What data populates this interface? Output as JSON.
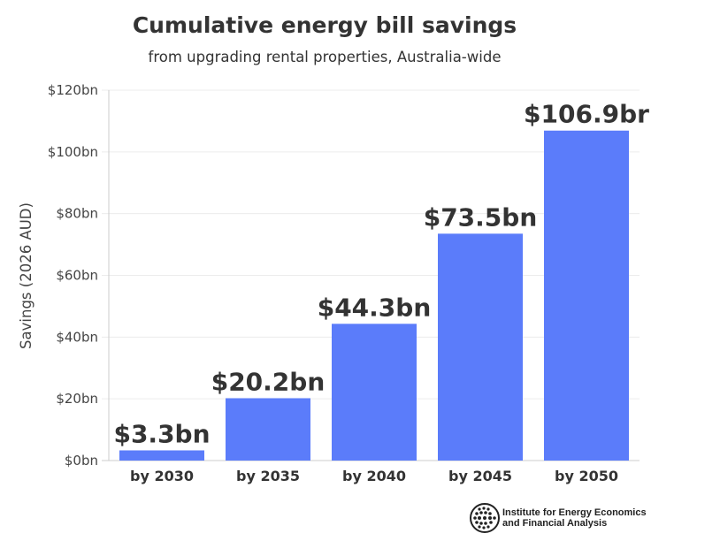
{
  "chart_data": {
    "type": "bar",
    "title": "Cumulative energy bill savings",
    "subtitle": "from upgrading rental properties, Australia-wide",
    "ylabel": "Savings (2026 AUD)",
    "xlabel": "",
    "categories": [
      "by 2030",
      "by 2035",
      "by 2040",
      "by 2045",
      "by 2050"
    ],
    "values": [
      3.3,
      20.2,
      44.3,
      73.5,
      106.9
    ],
    "data_labels": [
      "$3.3bn",
      "$20.2bn",
      "$44.3bn",
      "$73.5bn",
      "$106.9br"
    ],
    "ylim": [
      0,
      120
    ],
    "yticks": [
      0,
      20,
      40,
      60,
      80,
      100,
      120
    ],
    "ytick_labels": [
      "$0bn",
      "$20bn",
      "$40bn",
      "$60bn",
      "$80bn",
      "$100bn",
      "$120bn"
    ],
    "grid": true,
    "bar_color": "#5b7cfa"
  },
  "footer": {
    "logo_line1": "Institute for Energy Economics",
    "logo_line2": "and Financial Analysis"
  }
}
